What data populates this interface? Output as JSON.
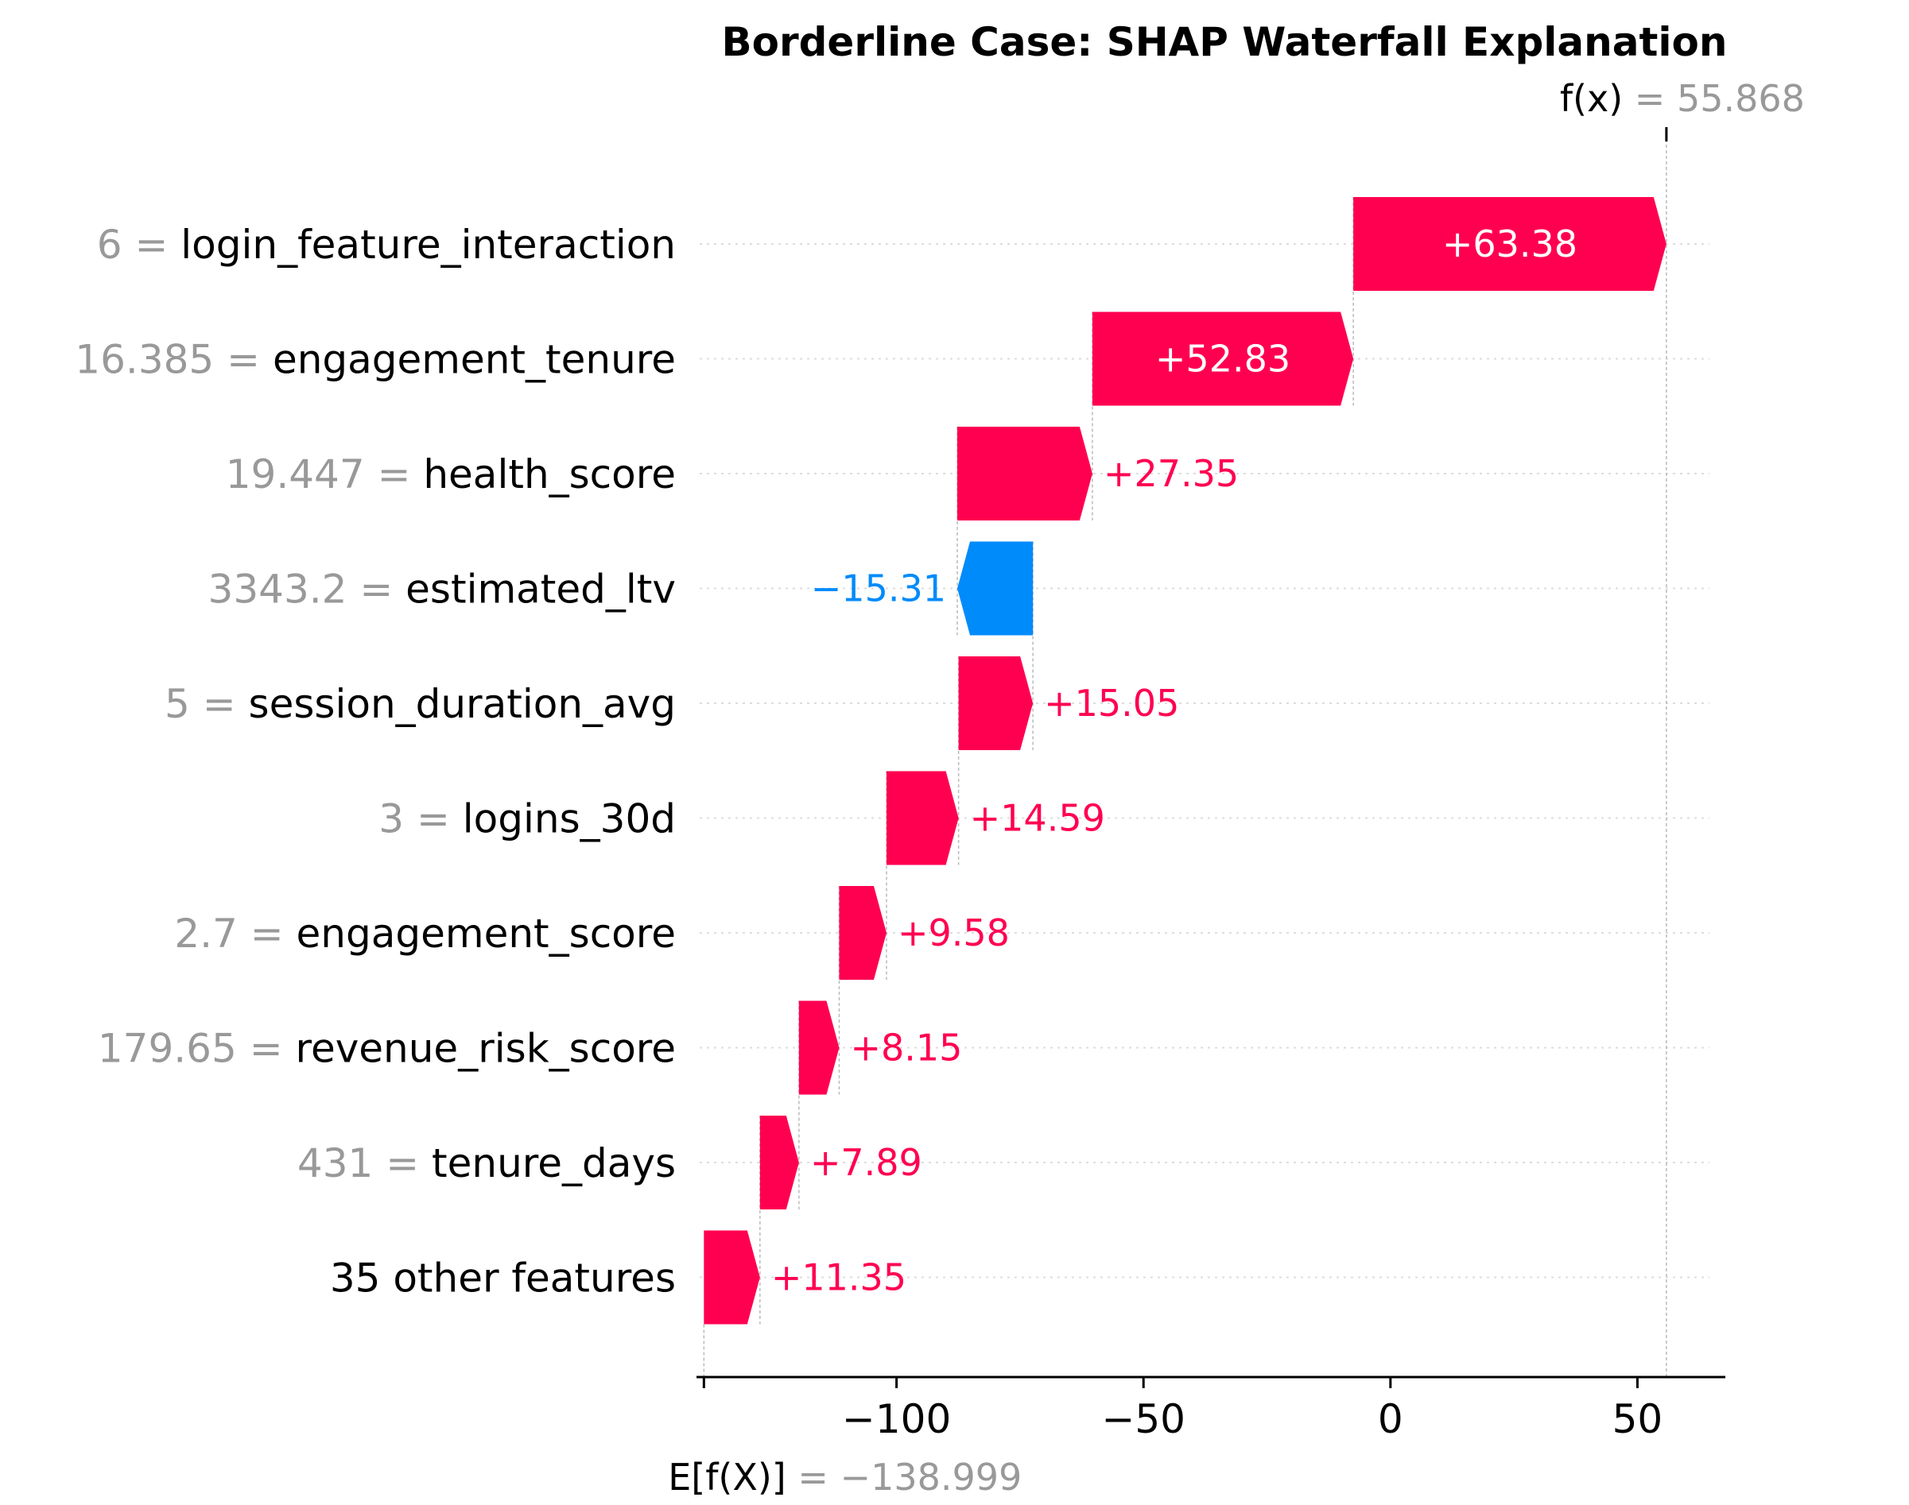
{
  "chart_data": {
    "type": "waterfall",
    "title": "Borderline Case: SHAP Waterfall Explanation",
    "base_value": -138.999,
    "base_value_label": "−138.999",
    "output_value": 55.868,
    "output_value_label": "55.868",
    "fx_symbol": "f(x)",
    "ex_symbol": "E[f(X)]",
    "features": [
      {
        "value": "6",
        "name": "login_feature_interaction",
        "shap": 63.38,
        "label": "+63.38"
      },
      {
        "value": "16.385",
        "name": "engagement_tenure",
        "shap": 52.83,
        "label": "+52.83"
      },
      {
        "value": "19.447",
        "name": "health_score",
        "shap": 27.35,
        "label": "+27.35"
      },
      {
        "value": "3343.2",
        "name": "estimated_ltv",
        "shap": -15.31,
        "label": "−15.31"
      },
      {
        "value": "5",
        "name": "session_duration_avg",
        "shap": 15.05,
        "label": "+15.05"
      },
      {
        "value": "3",
        "name": "logins_30d",
        "shap": 14.59,
        "label": "+14.59"
      },
      {
        "value": "2.7",
        "name": "engagement_score",
        "shap": 9.58,
        "label": "+9.58"
      },
      {
        "value": "179.65",
        "name": "revenue_risk_score",
        "shap": 8.15,
        "label": "+8.15"
      },
      {
        "value": "431",
        "name": "tenure_days",
        "shap": 7.89,
        "label": "+7.89"
      },
      {
        "value": "",
        "name": "35 other features",
        "shap": 11.35,
        "label": "+11.35"
      }
    ],
    "x_ticks": [
      {
        "value": -100,
        "label": "−100"
      },
      {
        "value": -50,
        "label": "−50"
      },
      {
        "value": 0,
        "label": "0"
      },
      {
        "value": 50,
        "label": "50"
      }
    ],
    "xlim": [
      -140.5,
      67.8
    ],
    "colors": {
      "positive": "#ff0051",
      "negative": "#008bfb",
      "value_text": "#999999",
      "guide": "#bbbbbb"
    }
  }
}
